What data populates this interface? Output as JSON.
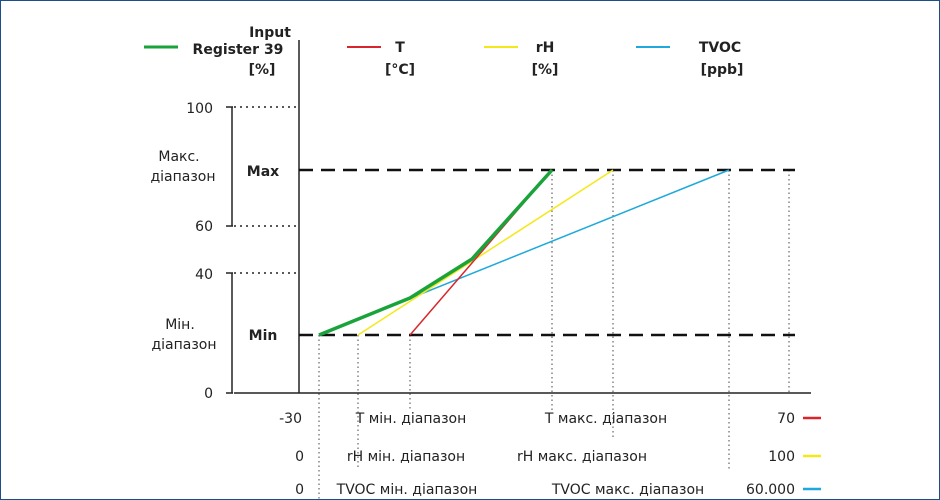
{
  "legend": [
    {
      "key": "input",
      "name_lines": [
        "Input",
        "Register 39",
        "[%]"
      ],
      "color": "#1aa33a"
    },
    {
      "key": "t",
      "name_lines": [
        "T",
        "[°C]"
      ],
      "color": "#d9262c"
    },
    {
      "key": "rh",
      "name_lines": [
        "rH",
        "[%]"
      ],
      "color": "#f5e81a"
    },
    {
      "key": "tvoc",
      "name_lines": [
        "TVOC",
        "[ppb]"
      ],
      "color": "#1ea8dc"
    }
  ],
  "y_ticks": [
    "100",
    "60",
    "40",
    "0"
  ],
  "range_labels": {
    "max_range": [
      "Макс.",
      "діапазон"
    ],
    "min_range": [
      "Мін.",
      "діапазон"
    ],
    "max_level": "Max",
    "min_level": "Min"
  },
  "x_rows": [
    {
      "key": "t",
      "start": "-30",
      "min_label": "T мін. діапазон",
      "max_label": "T макс. діапазон",
      "end": "70",
      "color": "#d9262c"
    },
    {
      "key": "rh",
      "start": "0",
      "min_label": "rH мін. діапазон",
      "max_label": "rH макс. діапазон",
      "end": "100",
      "color": "#f5e81a"
    },
    {
      "key": "tvoc",
      "start": "0",
      "min_label": "TVOC мін. діапазон",
      "max_label": "TVOC макс. діапазон",
      "end": "60.000",
      "color": "#1ea8dc"
    }
  ],
  "colors": {
    "frame": "#1b4f8a",
    "axis": "#222222",
    "dashed": "#111111"
  }
}
